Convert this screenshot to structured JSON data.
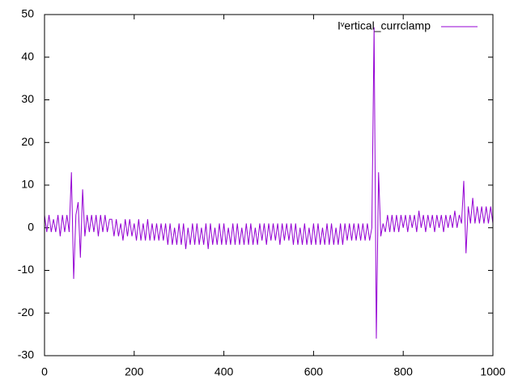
{
  "chart_data": {
    "type": "line",
    "x": [
      0,
      5,
      10,
      15,
      20,
      25,
      30,
      35,
      40,
      45,
      50,
      55,
      60,
      65,
      70,
      75,
      80,
      85,
      90,
      95,
      100,
      105,
      110,
      115,
      120,
      125,
      130,
      135,
      140,
      145,
      150,
      155,
      160,
      165,
      170,
      175,
      180,
      185,
      190,
      195,
      200,
      205,
      210,
      215,
      220,
      225,
      230,
      235,
      240,
      245,
      250,
      255,
      260,
      265,
      270,
      275,
      280,
      285,
      290,
      295,
      300,
      305,
      310,
      315,
      320,
      325,
      330,
      335,
      340,
      345,
      350,
      355,
      360,
      365,
      370,
      375,
      380,
      385,
      390,
      395,
      400,
      405,
      410,
      415,
      420,
      425,
      430,
      435,
      440,
      445,
      450,
      455,
      460,
      465,
      470,
      475,
      480,
      485,
      490,
      495,
      500,
      505,
      510,
      515,
      520,
      525,
      530,
      535,
      540,
      545,
      550,
      555,
      560,
      565,
      570,
      575,
      580,
      585,
      590,
      595,
      600,
      605,
      610,
      615,
      620,
      625,
      630,
      635,
      640,
      645,
      650,
      655,
      660,
      665,
      670,
      675,
      680,
      685,
      690,
      695,
      700,
      705,
      710,
      715,
      720,
      725,
      730,
      735,
      740,
      745,
      750,
      755,
      760,
      765,
      770,
      775,
      780,
      785,
      790,
      795,
      800,
      805,
      810,
      815,
      820,
      825,
      830,
      835,
      840,
      845,
      850,
      855,
      860,
      865,
      870,
      875,
      880,
      885,
      890,
      895,
      900,
      905,
      910,
      915,
      920,
      925,
      930,
      935,
      940,
      945,
      950,
      955,
      960,
      965,
      970,
      975,
      980,
      985,
      990,
      995,
      1000
    ],
    "series": [
      {
        "name": "Iᵛertical_currclamp",
        "color": "#9400d3",
        "values": [
          3,
          -1,
          3,
          -1,
          2,
          -1,
          3,
          -2,
          3,
          -1,
          3,
          -1,
          13,
          -12,
          3,
          6,
          -7,
          9,
          -2,
          3,
          -1,
          3,
          -1,
          3,
          -2,
          3,
          -1,
          3,
          -1,
          2,
          2,
          -2,
          2,
          -2,
          1,
          -3,
          2,
          -2,
          2,
          -2,
          1,
          -3,
          2,
          -3,
          1,
          -3,
          2,
          -3,
          1,
          -3,
          1,
          -3,
          1,
          -3,
          1,
          -4,
          1,
          -4,
          0,
          -4,
          1,
          -4,
          1,
          -5,
          0,
          -4,
          1,
          -4,
          1,
          -4,
          0,
          -4,
          1,
          -5,
          1,
          -4,
          0,
          -4,
          1,
          -4,
          1,
          -4,
          0,
          -4,
          1,
          -4,
          1,
          -4,
          0,
          -4,
          1,
          -4,
          1,
          -4,
          0,
          -4,
          1,
          -3,
          1,
          -4,
          1,
          -3,
          1,
          -3,
          1,
          -4,
          1,
          -3,
          1,
          -3,
          1,
          -4,
          1,
          -4,
          0,
          -4,
          1,
          -4,
          0,
          -4,
          1,
          -4,
          1,
          -4,
          0,
          -4,
          1,
          -4,
          1,
          -4,
          0,
          -4,
          1,
          -4,
          1,
          -3,
          1,
          -3,
          1,
          -3,
          1,
          -3,
          1,
          -3,
          1,
          -3,
          0,
          47,
          -26,
          13,
          -2,
          1,
          -1,
          3,
          -1,
          3,
          -1,
          3,
          -1,
          3,
          0,
          3,
          -1,
          3,
          0,
          3,
          -1,
          4,
          0,
          3,
          -1,
          3,
          0,
          3,
          -1,
          3,
          0,
          3,
          -1,
          3,
          0,
          3,
          0,
          4,
          0,
          3,
          1,
          11,
          -6,
          5,
          1,
          7,
          1,
          5,
          1,
          5,
          1,
          5,
          1,
          5,
          1
        ]
      }
    ],
    "xlim": [
      0,
      1000
    ],
    "xticks": [
      0,
      200,
      400,
      600,
      800,
      1000
    ],
    "ylim": [
      -30,
      50
    ],
    "yticks": [
      -30,
      -20,
      -10,
      0,
      10,
      20,
      30,
      40,
      50
    ],
    "legend": "top-right"
  }
}
